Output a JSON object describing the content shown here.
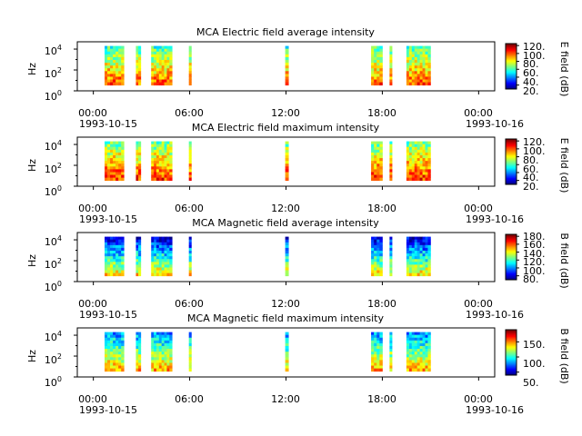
{
  "chart_data": [
    {
      "type": "heatmap",
      "title": "MCA  Electric field average intensity",
      "ylabel": "Hz",
      "y_scale": "log",
      "y_tick_labels": [
        [
          "10",
          "0"
        ],
        [
          "10",
          "2"
        ],
        [
          "10",
          "4"
        ]
      ],
      "x_tick_labels": [
        "00:00",
        "06:00",
        "12:00",
        "18:00",
        "00:00"
      ],
      "x_start_date": "1993-10-15",
      "x_end_date": "1993-10-16",
      "colorbar_label": "E field (dB)",
      "colorbar_ticks": [
        "20.",
        "40.",
        "60.",
        "80.",
        "100.",
        "120."
      ],
      "colorbar_range": [
        10,
        125
      ],
      "data_intervals_hours": [
        [
          0.7,
          1.9
        ],
        [
          2.65,
          2.95
        ],
        [
          3.6,
          4.9
        ],
        [
          5.95,
          6.1
        ],
        [
          11.95,
          12.15
        ],
        [
          17.3,
          18.0
        ],
        [
          18.45,
          18.6
        ],
        [
          19.5,
          21.0
        ]
      ],
      "typical_level_low_freq": 100,
      "typical_level_high_freq": 60
    },
    {
      "type": "heatmap",
      "title": "MCA  Electric field maximum intensity",
      "ylabel": "Hz",
      "y_scale": "log",
      "y_tick_labels": [
        [
          "10",
          "0"
        ],
        [
          "10",
          "2"
        ],
        [
          "10",
          "4"
        ]
      ],
      "x_tick_labels": [
        "00:00",
        "06:00",
        "12:00",
        "18:00",
        "00:00"
      ],
      "x_start_date": "1993-10-15",
      "x_end_date": "1993-10-16",
      "colorbar_label": "E field (dB)",
      "colorbar_ticks": [
        "20.",
        "40.",
        "60.",
        "80.",
        "100.",
        "120."
      ],
      "colorbar_range": [
        10,
        125
      ],
      "data_intervals_hours": [
        [
          0.7,
          1.9
        ],
        [
          2.65,
          2.95
        ],
        [
          3.6,
          4.9
        ],
        [
          5.95,
          6.1
        ],
        [
          11.95,
          12.15
        ],
        [
          17.3,
          18.0
        ],
        [
          18.45,
          18.6
        ],
        [
          19.5,
          21.0
        ]
      ],
      "typical_level_low_freq": 105,
      "typical_level_high_freq": 65
    },
    {
      "type": "heatmap",
      "title": "MCA  Magnetic field average intensity",
      "ylabel": "Hz",
      "y_scale": "log",
      "y_tick_labels": [
        [
          "10",
          "0"
        ],
        [
          "10",
          "2"
        ],
        [
          "10",
          "4"
        ]
      ],
      "x_tick_labels": [
        "00:00",
        "06:00",
        "12:00",
        "18:00",
        "00:00"
      ],
      "x_start_date": "1993-10-15",
      "x_end_date": "1993-10-16",
      "colorbar_label": "B field (dB)",
      "colorbar_ticks": [
        "80.",
        "100.",
        "120.",
        "140.",
        "160.",
        "180."
      ],
      "colorbar_range": [
        70,
        185
      ],
      "data_intervals_hours": [
        [
          0.7,
          1.9
        ],
        [
          2.65,
          2.95
        ],
        [
          3.6,
          4.9
        ],
        [
          5.95,
          6.1
        ],
        [
          11.95,
          12.15
        ],
        [
          17.3,
          18.0
        ],
        [
          18.45,
          18.6
        ],
        [
          19.5,
          21.0
        ]
      ],
      "typical_level_low_freq": 145,
      "typical_level_high_freq": 80
    },
    {
      "type": "heatmap",
      "title": "MCA  Magnetic field maximum intensity",
      "ylabel": "Hz",
      "y_scale": "log",
      "y_tick_labels": [
        [
          "10",
          "0"
        ],
        [
          "10",
          "2"
        ],
        [
          "10",
          "4"
        ]
      ],
      "x_tick_labels": [
        "00:00",
        "06:00",
        "12:00",
        "18:00",
        "00:00"
      ],
      "x_start_date": "1993-10-15",
      "x_end_date": "1993-10-16",
      "colorbar_label": "B field (dB)",
      "colorbar_ticks": [
        "50.",
        "100.",
        "150."
      ],
      "colorbar_range": [
        40,
        190
      ],
      "data_intervals_hours": [
        [
          0.7,
          1.9
        ],
        [
          2.65,
          2.95
        ],
        [
          3.6,
          4.9
        ],
        [
          5.95,
          6.1
        ],
        [
          11.95,
          12.15
        ],
        [
          17.3,
          18.0
        ],
        [
          18.45,
          18.6
        ],
        [
          19.5,
          21.0
        ]
      ],
      "typical_level_low_freq": 145,
      "typical_level_high_freq": 80
    }
  ]
}
